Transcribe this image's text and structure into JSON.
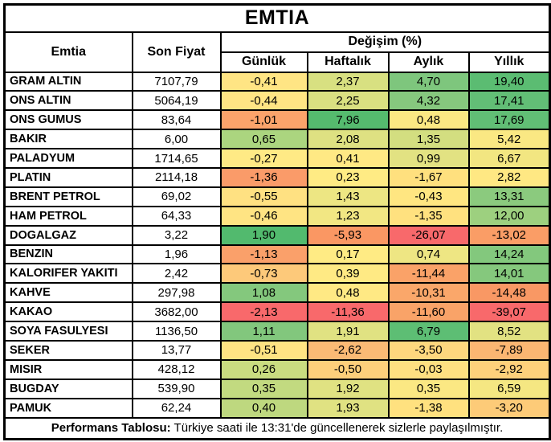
{
  "chart_data": {
    "type": "table",
    "title": "EMTIA",
    "header": {
      "commodity": "Emtia",
      "last_price": "Son Fiyat",
      "change_group": "Değişim (%)",
      "periods": [
        "Günlük",
        "Haftalık",
        "Aylık",
        "Yıllık"
      ]
    },
    "rows": [
      {
        "name": "GRAM ALTIN",
        "price": "7107,79",
        "changes": [
          {
            "v": "-0,41",
            "c": "#FFE584"
          },
          {
            "v": "2,37",
            "c": "#D8E081"
          },
          {
            "v": "4,70",
            "c": "#7EC67D"
          },
          {
            "v": "19,40",
            "c": "#5BBC72"
          }
        ]
      },
      {
        "name": "ONS ALTIN",
        "price": "5064,19",
        "changes": [
          {
            "v": "-0,44",
            "c": "#FFE584"
          },
          {
            "v": "2,25",
            "c": "#DAE081"
          },
          {
            "v": "4,32",
            "c": "#86C87E"
          },
          {
            "v": "17,41",
            "c": "#62BE76"
          }
        ]
      },
      {
        "name": "ONS GUMUS",
        "price": "83,64",
        "changes": [
          {
            "v": "-1,01",
            "c": "#FBA36B"
          },
          {
            "v": "7,96",
            "c": "#55BA6E"
          },
          {
            "v": "0,48",
            "c": "#FBE883"
          },
          {
            "v": "17,69",
            "c": "#61BE75"
          }
        ]
      },
      {
        "name": "BAKIR",
        "price": "6,00",
        "changes": [
          {
            "v": "0,65",
            "c": "#ABD57F"
          },
          {
            "v": "2,08",
            "c": "#DEE182"
          },
          {
            "v": "1,35",
            "c": "#D3DE80"
          },
          {
            "v": "5,42",
            "c": "#FAE883"
          }
        ]
      },
      {
        "name": "PALADYUM",
        "price": "1714,65",
        "changes": [
          {
            "v": "-0,27",
            "c": "#FFEA85"
          },
          {
            "v": "0,41",
            "c": "#FFE984"
          },
          {
            "v": "0,99",
            "c": "#E2E282"
          },
          {
            "v": "6,67",
            "c": "#F2E681"
          }
        ]
      },
      {
        "name": "PLATIN",
        "price": "2114,18",
        "changes": [
          {
            "v": "-1,36",
            "c": "#FA9B69"
          },
          {
            "v": "0,23",
            "c": "#FFEB84"
          },
          {
            "v": "-1,67",
            "c": "#FFE07E"
          },
          {
            "v": "2,82",
            "c": "#FFE883"
          }
        ]
      },
      {
        "name": "BRENT PETROL",
        "price": "69,02",
        "changes": [
          {
            "v": "-0,55",
            "c": "#FFE182"
          },
          {
            "v": "1,43",
            "c": "#EDE683"
          },
          {
            "v": "-0,43",
            "c": "#FFE681"
          },
          {
            "v": "13,31",
            "c": "#8BCA7E"
          }
        ]
      },
      {
        "name": "HAM PETROL",
        "price": "64,33",
        "changes": [
          {
            "v": "-0,46",
            "c": "#FFE483"
          },
          {
            "v": "1,23",
            "c": "#F2E783"
          },
          {
            "v": "-1,35",
            "c": "#FFE17F"
          },
          {
            "v": "12,00",
            "c": "#9DD07F"
          }
        ]
      },
      {
        "name": "DOGALGAZ",
        "price": "3,22",
        "changes": [
          {
            "v": "1,90",
            "c": "#52BA6E"
          },
          {
            "v": "-5,93",
            "c": "#FA9763"
          },
          {
            "v": "-26,07",
            "c": "#F8696B"
          },
          {
            "v": "-13,02",
            "c": "#FA9D66"
          }
        ]
      },
      {
        "name": "BENZIN",
        "price": "1,96",
        "changes": [
          {
            "v": "-1,13",
            "c": "#FAA06A"
          },
          {
            "v": "0,17",
            "c": "#FFEB84"
          },
          {
            "v": "0,74",
            "c": "#EEE683"
          },
          {
            "v": "14,24",
            "c": "#83C87D"
          }
        ]
      },
      {
        "name": "KALORIFER YAKITI",
        "price": "2,42",
        "changes": [
          {
            "v": "-0,73",
            "c": "#FDC97A"
          },
          {
            "v": "0,39",
            "c": "#FFEA84"
          },
          {
            "v": "-11,44",
            "c": "#FAA268"
          },
          {
            "v": "14,01",
            "c": "#85C87D"
          }
        ]
      },
      {
        "name": "KAHVE",
        "price": "297,98",
        "changes": [
          {
            "v": "1,08",
            "c": "#84C87D"
          },
          {
            "v": "0,48",
            "c": "#FFE984"
          },
          {
            "v": "-10,31",
            "c": "#FAA76A"
          },
          {
            "v": "-14,48",
            "c": "#F99864"
          }
        ]
      },
      {
        "name": "KAKAO",
        "price": "3682,00",
        "changes": [
          {
            "v": "-2,13",
            "c": "#F8696B"
          },
          {
            "v": "-11,36",
            "c": "#F8696B"
          },
          {
            "v": "-11,60",
            "c": "#F9A368"
          },
          {
            "v": "-39,07",
            "c": "#F8696B"
          }
        ]
      },
      {
        "name": "SOYA FASULYESI",
        "price": "1136,50",
        "changes": [
          {
            "v": "1,11",
            "c": "#82C77D"
          },
          {
            "v": "1,91",
            "c": "#E0E282"
          },
          {
            "v": "6,79",
            "c": "#5DBE74"
          },
          {
            "v": "8,52",
            "c": "#E2E282"
          }
        ]
      },
      {
        "name": "SEKER",
        "price": "13,77",
        "changes": [
          {
            "v": "-0,51",
            "c": "#FFE383"
          },
          {
            "v": "-2,62",
            "c": "#FBBA75"
          },
          {
            "v": "-3,50",
            "c": "#FED77E"
          },
          {
            "v": "-7,89",
            "c": "#FBB672"
          }
        ]
      },
      {
        "name": "MISIR",
        "price": "428,12",
        "changes": [
          {
            "v": "0,26",
            "c": "#C9DC80"
          },
          {
            "v": "-0,50",
            "c": "#FDCF7B"
          },
          {
            "v": "-0,03",
            "c": "#FEE081"
          },
          {
            "v": "-2,92",
            "c": "#FED17B"
          }
        ]
      },
      {
        "name": "BUGDAY",
        "price": "539,90",
        "changes": [
          {
            "v": "0,35",
            "c": "#C2DA80"
          },
          {
            "v": "1,92",
            "c": "#E0E282"
          },
          {
            "v": "0,35",
            "c": "#FBE883"
          },
          {
            "v": "6,59",
            "c": "#F5E782"
          }
        ]
      },
      {
        "name": "PAMUK",
        "price": "62,24",
        "changes": [
          {
            "v": "0,40",
            "c": "#BED87F"
          },
          {
            "v": "1,93",
            "c": "#E0E282"
          },
          {
            "v": "-1,38",
            "c": "#FFE17F"
          },
          {
            "v": "-3,20",
            "c": "#FDCB78"
          }
        ]
      }
    ],
    "footer": {
      "bold": "Performans Tablosu:",
      "text": " Türkiye saati ile 13:31'de güncellenerek sizlerle paylaşılmıştır."
    },
    "colors": {
      "scale_negative": "#F8696B",
      "scale_mid": "#FFEB84",
      "scale_positive": "#63BE7B",
      "border": "#000000",
      "background": "#FFFFFF"
    }
  }
}
